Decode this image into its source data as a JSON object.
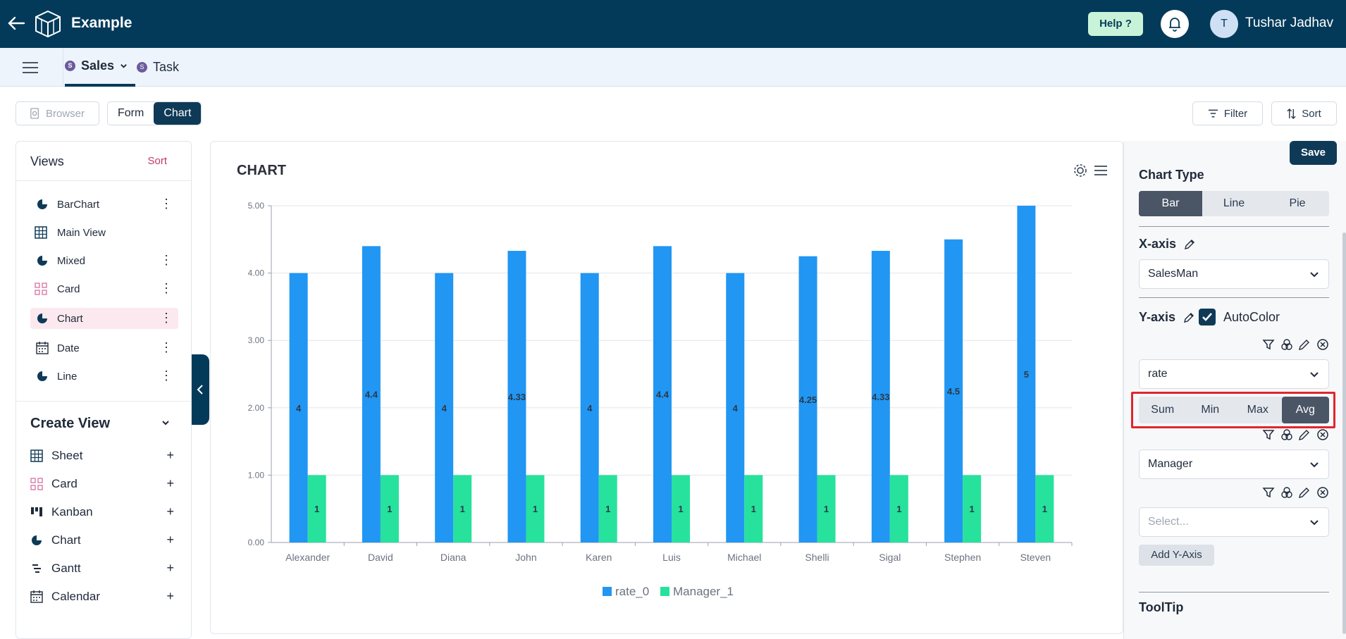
{
  "header": {
    "app_title": "Example",
    "help_label": "Help ?",
    "user_initial": "T",
    "user_name": "Tushar Jadhav"
  },
  "tabs": [
    {
      "badge": "S",
      "label": "Sales"
    },
    {
      "badge": "S",
      "label": "Task"
    }
  ],
  "toolbar": {
    "browser_label": "Browser",
    "form_label": "Form",
    "chart_label": "Chart",
    "filter_label": "Filter",
    "sort_label": "Sort"
  },
  "views": {
    "title": "Views",
    "sort_label": "Sort",
    "items": [
      {
        "label": "BarChart",
        "icon": "pie-chart-icon"
      },
      {
        "label": "Main View",
        "icon": "grid-icon"
      },
      {
        "label": "Mixed",
        "icon": "pie-chart-icon"
      },
      {
        "label": "Card",
        "icon": "card-icon"
      },
      {
        "label": "Chart",
        "icon": "pie-chart-icon"
      },
      {
        "label": "Date",
        "icon": "calendar-icon"
      },
      {
        "label": "Line",
        "icon": "pie-chart-icon"
      }
    ]
  },
  "create_view": {
    "title": "Create View",
    "items": [
      {
        "label": "Sheet",
        "icon": "grid-icon"
      },
      {
        "label": "Card",
        "icon": "card-icon"
      },
      {
        "label": "Kanban",
        "icon": "kanban-icon"
      },
      {
        "label": "Chart",
        "icon": "pie-chart-icon"
      },
      {
        "label": "Gantt",
        "icon": "gantt-icon"
      },
      {
        "label": "Calendar",
        "icon": "calendar-icon"
      }
    ]
  },
  "chart_panel": {
    "title": "CHART"
  },
  "chart_data": {
    "type": "bar",
    "categories": [
      "Alexander",
      "David",
      "Diana",
      "John",
      "Karen",
      "Luis",
      "Michael",
      "Shelli",
      "Sigal",
      "Stephen",
      "Steven"
    ],
    "series": [
      {
        "name": "rate_0",
        "values": [
          4,
          4.4,
          4,
          4.33,
          4,
          4.4,
          4,
          4.25,
          4.33,
          4.5,
          5
        ],
        "labels": [
          "4",
          "4.4",
          "4",
          "4.33",
          "4",
          "4.4",
          "4",
          "4.25",
          "4.33",
          "4.5",
          "5"
        ],
        "color": "#2196f3"
      },
      {
        "name": "Manager_1",
        "values": [
          1,
          1,
          1,
          1,
          1,
          1,
          1,
          1,
          1,
          1,
          1
        ],
        "labels": [
          "1",
          "1",
          "1",
          "1",
          "1",
          "1",
          "1",
          "1",
          "1",
          "1",
          "1"
        ],
        "color": "#26e29c"
      }
    ],
    "ylim": [
      0,
      5
    ],
    "yticks": [
      "0.00",
      "1.00",
      "2.00",
      "3.00",
      "4.00",
      "5.00"
    ],
    "grid": true,
    "legend": "bottom-center"
  },
  "settings": {
    "save_label": "Save",
    "chart_type_label": "Chart Type",
    "chart_types": [
      "Bar",
      "Line",
      "Pie"
    ],
    "x_axis_label": "X-axis",
    "x_axis_value": "SalesMan",
    "y_axis_label": "Y-axis",
    "autocolor_label": "AutoColor",
    "y_field_1": "rate",
    "aggregations": [
      "Sum",
      "Min",
      "Max",
      "Avg"
    ],
    "y_field_2": "Manager",
    "y_field_3_placeholder": "Select...",
    "add_y_axis_label": "Add Y-Axis",
    "tooltip_label": "ToolTip"
  }
}
